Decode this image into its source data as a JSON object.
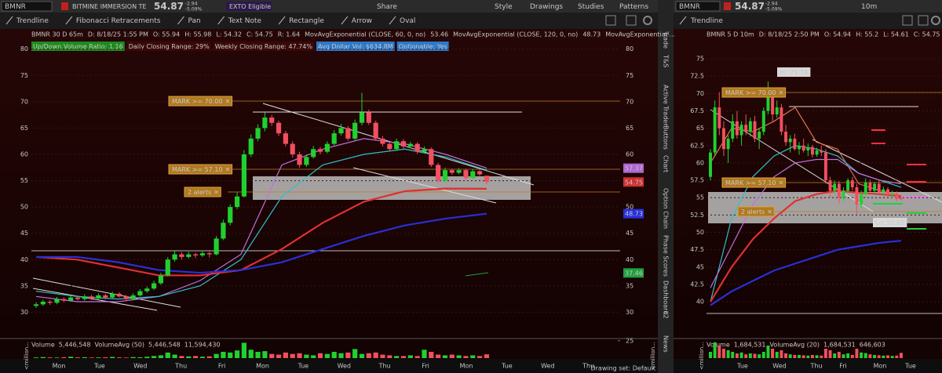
{
  "toolbar": {
    "symbol": "BMNR",
    "price": "54.87",
    "company": "BITMINE IMMERSION TE",
    "change": "-2.94",
    "change_pct": "-5.09%",
    "badge": "EXTO Eligible",
    "buttons": [
      "Share",
      "Style",
      "Drawings",
      "Studies",
      "Patterns"
    ]
  },
  "drawing_tools": [
    "Trendline",
    "Fibonacci Retracements",
    "Pan",
    "Text Note",
    "Rectangle",
    "Arrow",
    "Oval"
  ],
  "side_tabs": [
    "Trade",
    "T&S",
    "Active Trader",
    "Buttons",
    "Chart",
    "Option Chain",
    "Phase Scores",
    "Dashboard",
    "L2",
    "News"
  ],
  "left_chart": {
    "header": [
      {
        "text": "BMNR 30 D 65m",
        "color": "#ffffff"
      },
      {
        "text": "D: 8/18/25 1:55 PM",
        "color": "#c8c8c8"
      },
      {
        "text": "O: 55.94",
        "color": "#c8c8c8"
      },
      {
        "text": "H: 55.98",
        "color": "#c8c8c8"
      },
      {
        "text": "L: 54.32",
        "color": "#c8c8c8"
      },
      {
        "text": "C: 54.75",
        "color": "#c8c8c8"
      },
      {
        "text": "R: 1.64",
        "color": "#c8c8c8"
      },
      {
        "text": "MovAvgExponential (CLOSE, 60, 0, no)",
        "color": "#e03030"
      },
      {
        "text": "53.46",
        "color": "#e03030"
      },
      {
        "text": "MovAvgExponential (CLOSE, 120, 0, no)",
        "color": "#3a4ee0"
      },
      {
        "text": "48.73",
        "color": "#3a4ee0"
      },
      {
        "text": "MovAvgExponential ...",
        "color": "#c070e0"
      }
    ],
    "studies": [
      {
        "text": "Up/Down Volume Ratio: 1.16",
        "bg": "#1e8a1e",
        "fg": "#ffffff"
      },
      {
        "text": "Daily Closing Range: 29%",
        "bg": "#3a0808",
        "fg": "#e83030"
      },
      {
        "text": "Weekly Closing Range: 47.74%",
        "bg": "#3a0808",
        "fg": "#e83030"
      },
      {
        "text": "Avg Dollar Vol: $634.8M",
        "bg": "#2b78c9",
        "fg": "#ffffff"
      },
      {
        "text": "Optionable: Yes",
        "bg": "#2b78c9",
        "fg": "#ffffff"
      }
    ],
    "ylim": [
      25,
      81
    ],
    "yticks": [
      80,
      75,
      70,
      65,
      60,
      55,
      50,
      45,
      40,
      35,
      30
    ],
    "candles": [
      [
        31.2,
        31.9,
        30.8,
        31.5
      ],
      [
        31.5,
        32.4,
        31.2,
        32
      ],
      [
        32,
        32.3,
        31.4,
        31.8
      ],
      [
        31.8,
        32.9,
        31.5,
        32.5
      ],
      [
        32.5,
        32.8,
        31.9,
        32.2
      ],
      [
        32.2,
        33.2,
        32,
        32.8
      ],
      [
        32.8,
        33,
        32.2,
        32.5
      ],
      [
        32.5,
        33.4,
        32.2,
        33
      ],
      [
        33,
        33.3,
        32.3,
        32.6
      ],
      [
        32.6,
        33.6,
        32.4,
        33.2
      ],
      [
        33.2,
        33.5,
        32.5,
        32.8
      ],
      [
        32.8,
        33.9,
        32.6,
        33.5
      ],
      [
        33.5,
        33.8,
        32.8,
        33
      ],
      [
        33,
        33.3,
        32.1,
        32.5
      ],
      [
        32.5,
        33.6,
        32.3,
        33.2
      ],
      [
        33.2,
        34.4,
        33,
        34
      ],
      [
        34,
        34.9,
        33.7,
        34.5
      ],
      [
        34.5,
        36,
        34.2,
        35.5
      ],
      [
        35.5,
        37.5,
        35.2,
        37
      ],
      [
        37,
        40.5,
        36.8,
        40
      ],
      [
        40,
        41.8,
        39.6,
        41
      ],
      [
        41,
        41.4,
        40,
        40.5
      ],
      [
        40.5,
        41.5,
        40.2,
        41
      ],
      [
        41,
        41.3,
        40.3,
        40.8
      ],
      [
        40.8,
        41.7,
        40.5,
        41.2
      ],
      [
        41.2,
        41.5,
        40.4,
        41
      ],
      [
        41,
        44.5,
        40.8,
        44
      ],
      [
        44,
        47.6,
        43.7,
        47
      ],
      [
        47,
        50.5,
        46.5,
        50
      ],
      [
        50,
        52.8,
        49.6,
        52
      ],
      [
        52,
        60.8,
        51.8,
        60
      ],
      [
        60,
        63.8,
        59.5,
        63
      ],
      [
        63,
        65.7,
        62.5,
        65
      ],
      [
        65,
        68,
        64.4,
        67
      ],
      [
        67,
        67.5,
        65.4,
        66
      ],
      [
        66,
        66.4,
        63.5,
        64
      ],
      [
        64,
        64.5,
        61.5,
        62
      ],
      [
        62,
        62.5,
        59.4,
        60
      ],
      [
        60,
        60.5,
        57.5,
        58
      ],
      [
        58,
        60,
        57.6,
        59.5
      ],
      [
        59.5,
        61.6,
        59.2,
        61
      ],
      [
        61,
        61.4,
        60,
        60.5
      ],
      [
        60.5,
        62.5,
        60.2,
        62
      ],
      [
        62,
        64.6,
        61.7,
        64
      ],
      [
        64,
        65.8,
        63.6,
        65
      ],
      [
        65,
        65.4,
        62.6,
        63
      ],
      [
        63,
        66.6,
        62.7,
        66
      ],
      [
        66,
        71.7,
        65.5,
        68
      ],
      [
        68,
        68.5,
        65.6,
        66
      ],
      [
        66,
        66.4,
        62.6,
        63
      ],
      [
        63,
        63.5,
        61.5,
        62
      ],
      [
        62,
        62.4,
        60.6,
        61
      ],
      [
        61,
        63,
        60.7,
        62.5
      ],
      [
        62.5,
        62.9,
        61.1,
        61.5
      ],
      [
        61.5,
        62.4,
        61.2,
        62
      ],
      [
        62,
        62.3,
        60.1,
        60.5
      ],
      [
        60.5,
        61.5,
        60.2,
        61
      ],
      [
        61,
        61.3,
        57.6,
        58
      ],
      [
        58,
        58.4,
        54.6,
        55
      ],
      [
        55,
        57.5,
        54.7,
        57
      ],
      [
        57,
        57.3,
        56.1,
        56.5
      ],
      [
        56.5,
        57.4,
        56.2,
        57
      ],
      [
        57,
        57.3,
        55.1,
        55.5
      ],
      [
        55.5,
        57.2,
        55.3,
        56.8
      ],
      [
        56.8,
        57,
        55.9,
        56.2
      ],
      [
        55.94,
        55.98,
        54.32,
        54.75
      ]
    ],
    "lines": [
      {
        "color": "#c070e0",
        "values": [
          33,
          32,
          32,
          33,
          36,
          41,
          58,
          61,
          63,
          62,
          60,
          57.4
        ]
      },
      {
        "color": "#30c0c8",
        "values": [
          34,
          33,
          32.5,
          33,
          35,
          40,
          52,
          58,
          60,
          61,
          59.5,
          57
        ]
      },
      {
        "color": "#e03030",
        "values": [
          40.5,
          40,
          38.5,
          37,
          37,
          38,
          42,
          47,
          51,
          53,
          53.5,
          53.46
        ]
      },
      {
        "color": "#2830d8",
        "values": [
          40.5,
          40.5,
          39.5,
          38,
          37.5,
          38,
          39.5,
          42,
          44.5,
          46.5,
          47.8,
          48.73
        ]
      }
    ],
    "bubbles": [
      {
        "value": 57.37,
        "color": "#b066d0"
      },
      {
        "value": 54.75,
        "color": "#d03030"
      },
      {
        "value": 48.73,
        "color": "#2830d8"
      },
      {
        "value": 37.46,
        "color": "#20a040"
      }
    ],
    "alerts": [
      "MARK >= 70.00",
      "MARK >= 57.10",
      "2 alerts"
    ],
    "volume_header": [
      {
        "text": "Volume",
        "color": "#ffffff"
      },
      {
        "text": "5,446,548",
        "color": "#e03030"
      },
      {
        "text": "VolumeAvg (50)",
        "color": "#e03030"
      },
      {
        "text": "5,446,548",
        "color": "#e03030"
      },
      {
        "text": "11,594,430",
        "color": "#ffffff"
      }
    ],
    "volume_label": "<million...",
    "volume_ylim": [
      0,
      27
    ],
    "volume_ticks": [
      25
    ],
    "volume": [
      1,
      1.5,
      1,
      0.8,
      1.2,
      2,
      1,
      1.3,
      0.8,
      1,
      1.2,
      1.8,
      1,
      0.8,
      1.5,
      1.2,
      2,
      3,
      4,
      8,
      5,
      3,
      2.5,
      3,
      2,
      2.5,
      6,
      9,
      8,
      11,
      22,
      12,
      9,
      10,
      6,
      5,
      8,
      6,
      7,
      5,
      4,
      7,
      6,
      9,
      7,
      8,
      13,
      6,
      7,
      8,
      5,
      4,
      3,
      3,
      4,
      3,
      12,
      9,
      5,
      4,
      5,
      4,
      3,
      4,
      3,
      5.4
    ],
    "x_labels": [
      "Mon",
      "Tue",
      "Wed",
      "Thu",
      "Fri",
      "Mon",
      "Tue",
      "Wed",
      "Thu",
      "Fri",
      "Mon",
      "Tue",
      "Wed",
      "Thu"
    ],
    "footer": "Drawing set: Default"
  },
  "right_chart": {
    "toolbar": {
      "symbol": "BMNR",
      "price": "54.87",
      "change": "-2.94",
      "change_pct": "-5.09%",
      "interval": "10m"
    },
    "drawing_tools": [
      "Trendline"
    ],
    "header": [
      {
        "text": "BMNR 5 D 10m",
        "color": "#ffffff"
      },
      {
        "text": "D: 8/18/25 2:50 PM",
        "color": "#c8c8c8"
      },
      {
        "text": "O: 54.94",
        "color": "#c8c8c8"
      },
      {
        "text": "H: 55.2",
        "color": "#c8c8c8"
      },
      {
        "text": "L: 54.61",
        "color": "#c8c8c8"
      },
      {
        "text": "C: 54.75",
        "color": "#c8c8c8"
      }
    ],
    "ylim": [
      35,
      78
    ],
    "yticks": [
      75,
      72.5,
      70,
      67.5,
      65,
      62.5,
      60,
      57.5,
      55,
      52.5,
      50,
      47.5,
      45,
      42.5,
      40
    ],
    "candles": [
      [
        58,
        62,
        57.5,
        61.5
      ],
      [
        61.5,
        69,
        61,
        68
      ],
      [
        68,
        70.2,
        64,
        65
      ],
      [
        65,
        66,
        61,
        62
      ],
      [
        62,
        64,
        60,
        63.5
      ],
      [
        63.5,
        67,
        63,
        66
      ],
      [
        66,
        67.5,
        63.5,
        64
      ],
      [
        64,
        66,
        62.5,
        65.5
      ],
      [
        65.5,
        67,
        64,
        64.5
      ],
      [
        64.5,
        66.5,
        63.8,
        66
      ],
      [
        66,
        66.8,
        63,
        63.5
      ],
      [
        63.5,
        65,
        62,
        64.5
      ],
      [
        64.5,
        68,
        64,
        67.5
      ],
      [
        67.5,
        71.74,
        67,
        70
      ],
      [
        70,
        70.5,
        66,
        67
      ],
      [
        67,
        69,
        66.5,
        68
      ],
      [
        68,
        68.5,
        64,
        64.5
      ],
      [
        64.5,
        65.5,
        62.5,
        63
      ],
      [
        63,
        64,
        61.5,
        63.5
      ],
      [
        63.5,
        64.2,
        61.8,
        62
      ],
      [
        62,
        63,
        61.2,
        62.5
      ],
      [
        62.5,
        63.5,
        61.5,
        61.8
      ],
      [
        61.8,
        62.8,
        61,
        62.3
      ],
      [
        62.3,
        62.6,
        60.8,
        61.2
      ],
      [
        61.2,
        62.2,
        60.9,
        61.8
      ],
      [
        61.8,
        62.5,
        61,
        61.5
      ],
      [
        61.5,
        62,
        57,
        57.5
      ],
      [
        57.5,
        58,
        55,
        56
      ],
      [
        56,
        57.5,
        55.5,
        57
      ],
      [
        57,
        57.4,
        54.2,
        55
      ],
      [
        55,
        56.5,
        54.5,
        56
      ],
      [
        56,
        57.8,
        55.8,
        57.5
      ],
      [
        57.5,
        58,
        56,
        56.5
      ],
      [
        56.5,
        57,
        52.65,
        54
      ],
      [
        54,
        56,
        53.5,
        55.5
      ],
      [
        55.5,
        57.8,
        55,
        57.2
      ],
      [
        57.2,
        57.6,
        55.8,
        56
      ],
      [
        56,
        57.3,
        55.6,
        57
      ],
      [
        57,
        57.5,
        55.5,
        55.8
      ],
      [
        55.8,
        56.6,
        55.2,
        56.2
      ],
      [
        56.2,
        56.5,
        55,
        55.4
      ],
      [
        55.4,
        56,
        54.8,
        55.6
      ],
      [
        55.6,
        55.9,
        54.5,
        54.8
      ],
      [
        54.94,
        55.2,
        54.61,
        54.75
      ]
    ],
    "lines": [
      {
        "color": "#e07050",
        "values": [
          60,
          65,
          64.5,
          66,
          68,
          63,
          62,
          57,
          56,
          55.3
        ]
      },
      {
        "color": "#30c0c8",
        "values": [
          40,
          52,
          58,
          61,
          62.5,
          62,
          61,
          58.5,
          57.5,
          56.5
        ]
      },
      {
        "color": "#c070e0",
        "values": [
          42,
          48,
          54,
          58,
          60,
          60.5,
          60.5,
          58.5,
          57.5,
          57
        ]
      },
      {
        "color": "#e03030",
        "values": [
          40,
          45,
          49,
          52,
          54.5,
          55.5,
          56,
          55.7,
          55.5,
          55.2
        ]
      },
      {
        "color": "#2830d8",
        "values": [
          39.5,
          41.5,
          43,
          44.5,
          45.5,
          46.5,
          47.5,
          48,
          48.5,
          48.8
        ]
      }
    ],
    "annotations": [
      "Hi: 71.74",
      "Lo: 52.65"
    ],
    "alerts": [
      "MARK >= 70.00",
      "MARK >= 57.10",
      "2 alerts"
    ],
    "volume_header": [
      {
        "text": "Volume",
        "color": "#ffffff"
      },
      {
        "text": "1,684,531",
        "color": "#e03030"
      },
      {
        "text": "VolumeAvg (20)",
        "color": "#e03030"
      },
      {
        "text": "1,684,531",
        "color": "#e03030"
      },
      {
        "text": "646,603",
        "color": "#ffffff"
      }
    ],
    "volume_label": "<million...",
    "volume_ylim": [
      0,
      6
    ],
    "volume": [
      2,
      5,
      4,
      3,
      2.5,
      2,
      1.5,
      1.8,
      1.2,
      1.5,
      1.4,
      1.2,
      2,
      4,
      3,
      2,
      2.5,
      1.5,
      1.2,
      1,
      1,
      0.9,
      0.8,
      1,
      0.9,
      0.8,
      3,
      2.5,
      1.5,
      2,
      1.2,
      1.5,
      1,
      3,
      1.8,
      1.6,
      1.2,
      1,
      0.9,
      0.8,
      0.9,
      0.7,
      0.8,
      1.68
    ],
    "x_labels": [
      "Tue",
      "Wed",
      "Thu",
      "Fri",
      "Mon",
      "Tue"
    ]
  }
}
